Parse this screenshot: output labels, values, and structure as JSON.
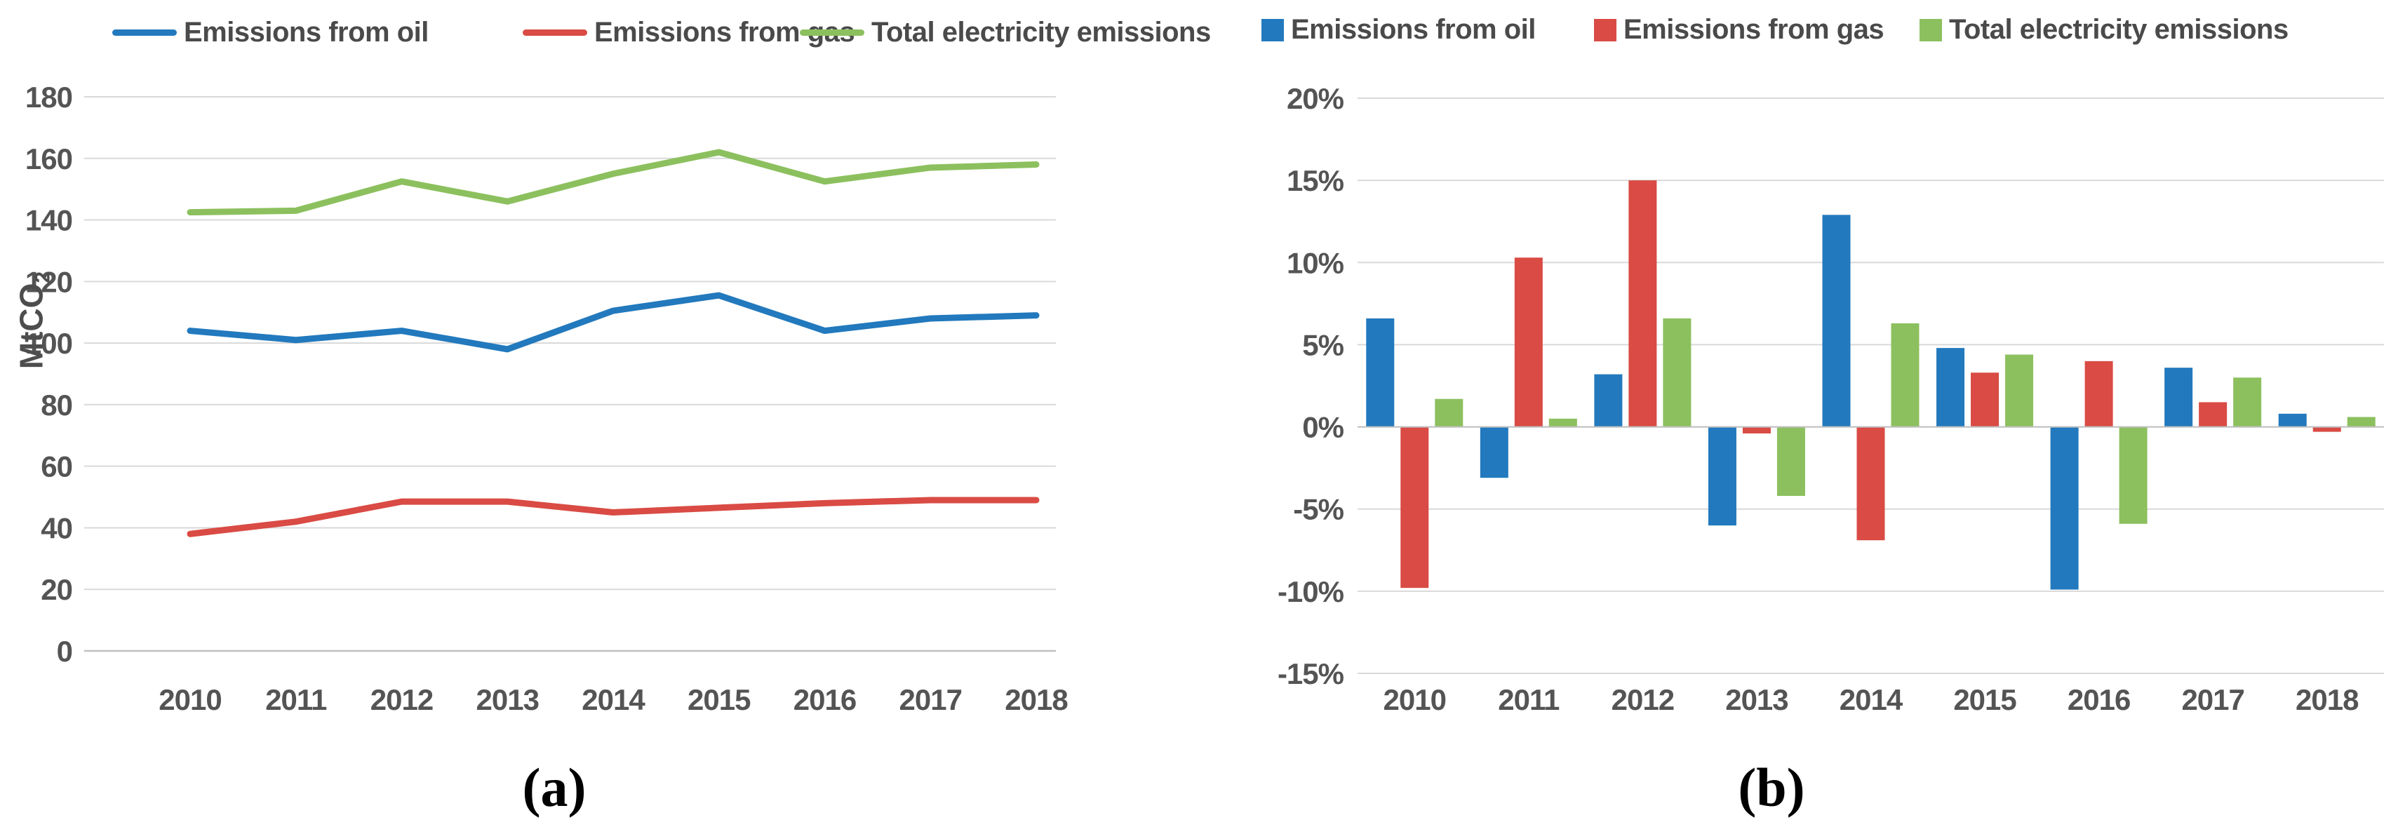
{
  "figure": {
    "panel_a_caption": "(a)",
    "panel_b_caption": "(b)",
    "ylabel_main": "MtCO",
    "ylabel_sub": "2",
    "colors": {
      "oil": "#2279BD",
      "gas": "#D94B44",
      "total": "#8CC05E",
      "gridline": "#D9D9D9",
      "axis_line": "#C0C0C0",
      "tick_text": "#545454",
      "legend_text": "#4a4a4a"
    }
  },
  "chart_data": [
    {
      "id": "a",
      "type": "line",
      "title": "",
      "xlabel": "",
      "ylabel": "MtCO2",
      "x": [
        "2010",
        "2011",
        "2012",
        "2013",
        "2014",
        "2015",
        "2016",
        "2017",
        "2018"
      ],
      "ylim": [
        0,
        180
      ],
      "ytick_step": 20,
      "grid": true,
      "legend_position": "top",
      "series": [
        {
          "name": "Emissions from oil",
          "color": "#2279BD",
          "values": [
            104,
            101,
            104,
            98,
            110.5,
            115.5,
            104,
            108,
            109
          ]
        },
        {
          "name": "Emissions from gas",
          "color": "#D94B44",
          "values": [
            38,
            42,
            48.5,
            48.5,
            45,
            46.5,
            48,
            49,
            49
          ]
        },
        {
          "name": "Total electricity emissions",
          "color": "#8CC05E",
          "values": [
            142.5,
            143,
            152.5,
            146,
            155,
            162,
            152.5,
            157,
            158
          ]
        }
      ]
    },
    {
      "id": "b",
      "type": "bar",
      "title": "",
      "xlabel": "",
      "ylabel": "",
      "x": [
        "2010",
        "2011",
        "2012",
        "2013",
        "2014",
        "2015",
        "2016",
        "2017",
        "2018"
      ],
      "ylim": [
        -15,
        20
      ],
      "ytick_step": 5,
      "ytick_suffix": "%",
      "grid": true,
      "legend_position": "top",
      "series": [
        {
          "name": "Emissions from oil",
          "color": "#2279BD",
          "values": [
            6.6,
            -3.1,
            3.2,
            -6.0,
            12.9,
            4.8,
            -9.9,
            3.6,
            0.8
          ]
        },
        {
          "name": "Emissions from gas",
          "color": "#D94B44",
          "values": [
            -9.8,
            10.3,
            15.0,
            -0.4,
            -6.9,
            3.3,
            4.0,
            1.5,
            -0.3
          ]
        },
        {
          "name": "Total electricity emissions",
          "color": "#8CC05E",
          "values": [
            1.7,
            0.5,
            6.6,
            -4.2,
            6.3,
            4.4,
            -5.9,
            3.0,
            0.6
          ]
        }
      ]
    }
  ]
}
